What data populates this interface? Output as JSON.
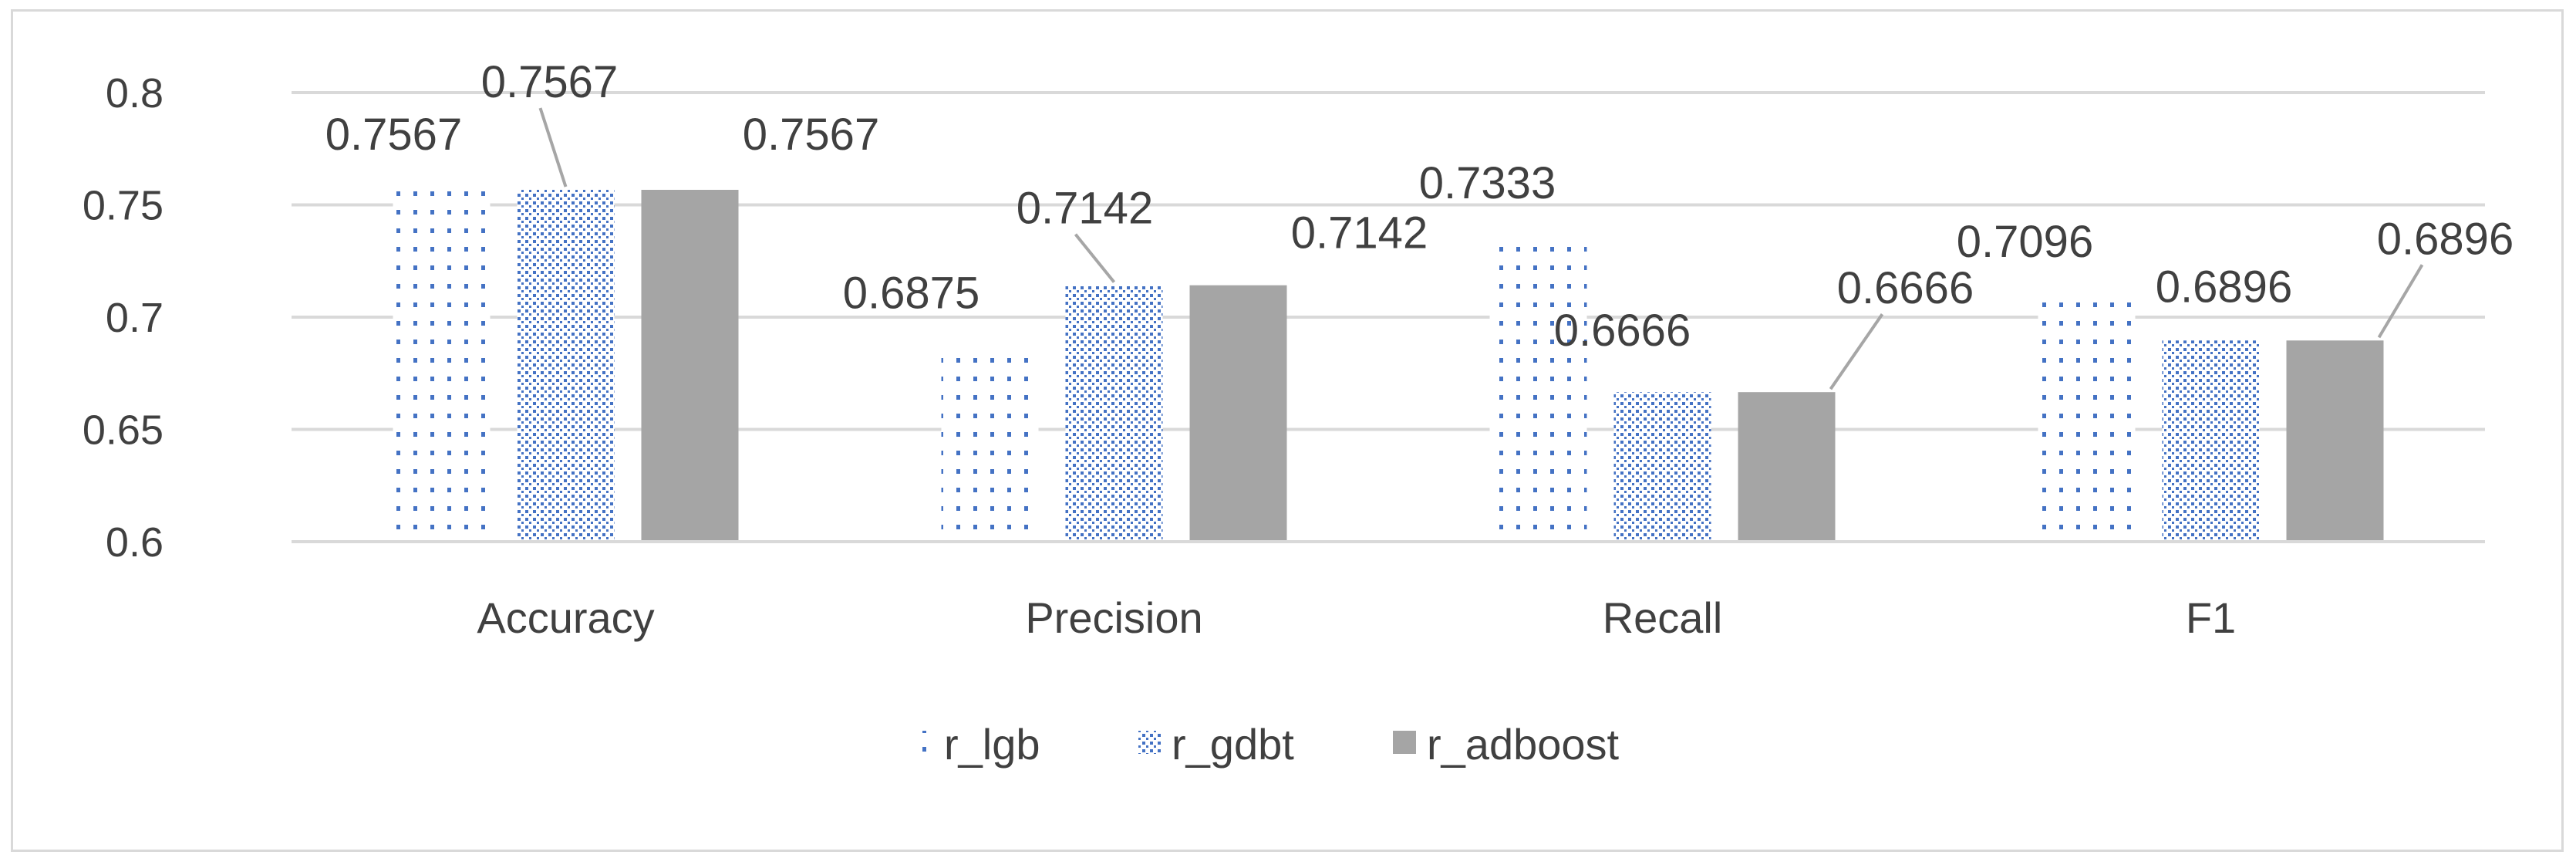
{
  "chart_data": {
    "type": "bar",
    "title": "",
    "xlabel": "",
    "ylabel": "",
    "categories": [
      "Accuracy",
      "Precision",
      "Recall",
      "F1"
    ],
    "series": [
      {
        "name": "r_lgb",
        "values": [
          0.7567,
          0.6875,
          0.7333,
          0.7096
        ],
        "labels": [
          "0.7567",
          "0.6875",
          "0.7333",
          "0.7096"
        ],
        "color": "#4472c4"
      },
      {
        "name": "r_gdbt",
        "values": [
          0.7567,
          0.7142,
          0.6666,
          0.6896
        ],
        "labels": [
          "0.7567",
          "0.7142",
          "0.6666",
          "0.6896"
        ],
        "color": "#4472c4"
      },
      {
        "name": "r_adboost",
        "values": [
          0.7567,
          0.7142,
          0.6666,
          0.6896
        ],
        "labels": [
          "0.7567",
          "0.7142",
          "0.6666",
          "0.6896"
        ],
        "color": "#a5a5a5"
      }
    ],
    "ylim": [
      0.6,
      0.8
    ],
    "yticks": [
      "0.6",
      "0.65",
      "0.7",
      "0.75",
      "0.8"
    ],
    "grid": true,
    "legend": "bottom"
  }
}
